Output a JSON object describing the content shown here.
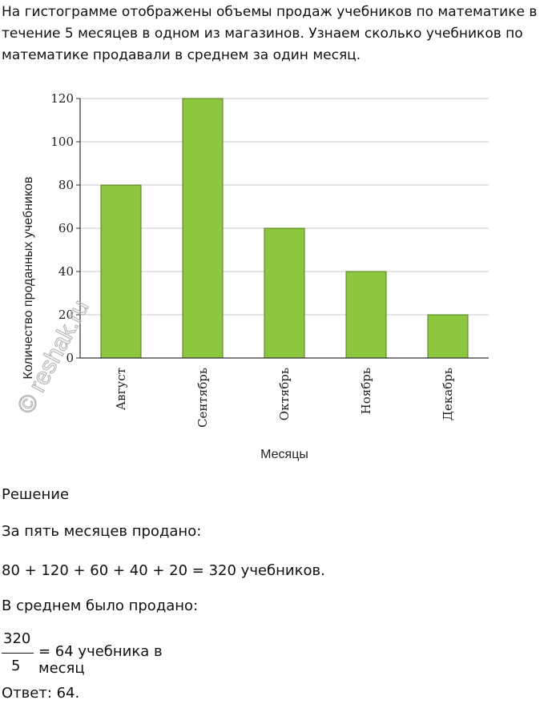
{
  "intro": {
    "line1": "На гистограмме отображены объемы продаж учебников по математике в",
    "line2": "течение 5 месяцев в одном из магазинов. Узнаем сколько учебников по",
    "line3": "математике продавали в среднем за один месяц."
  },
  "chart_data": {
    "type": "bar",
    "categories": [
      "Август",
      "Сентябрь",
      "Октябрь",
      "Ноябрь",
      "Декабрь"
    ],
    "values": [
      80,
      120,
      60,
      40,
      20
    ],
    "title": "",
    "xlabel": "Месяцы",
    "ylabel": "Количество проданных учебников",
    "ylim": [
      0,
      120
    ],
    "yticks": [
      0,
      20,
      40,
      60,
      80,
      100,
      120
    ],
    "grid": true,
    "bar_color": "#8dc63f",
    "bar_edge_color": "#4f7f1c"
  },
  "watermark": "© reshak.ru",
  "solution": {
    "heading": "Решение",
    "line1": "За пять месяцев продано:",
    "line2": "80 + 120 + 60 + 40 + 20 = 320 учебников.",
    "line3": "В среднем было продано:",
    "frac_num": "320",
    "frac_den": "5",
    "frac_rest": "= 64 учебника в месяц",
    "answer": "Ответ: 64."
  }
}
